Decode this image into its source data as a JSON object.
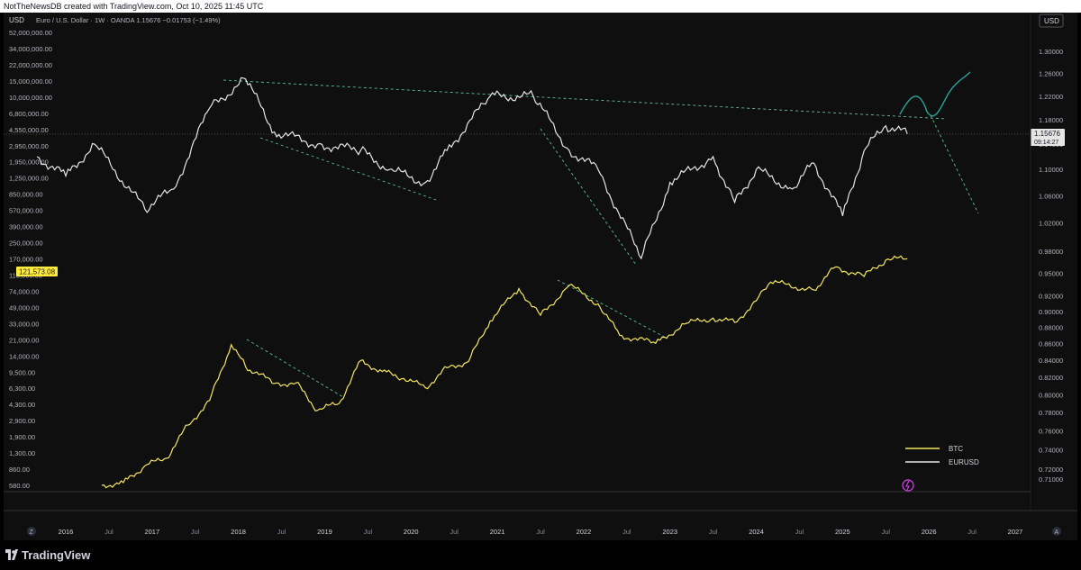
{
  "attribution": "NotTheNewsDB created with TradingView.com, Oct 10, 2025 11:45 UTC",
  "symbol_info": "Euro / U.S. Dollar · 1W · OANDA  1.15676  −0.01753 (−1.49%)",
  "currency_left": "USD",
  "currency_right": "USD",
  "brand_name": "TradingView",
  "left_axis_labels": [
    "52,000,000.00",
    "34,000,000.00",
    "22,000,000.00",
    "15,000,000.00",
    "10,000,000.00",
    "6,800,000.00",
    "4,550,000.00",
    "2,950,000.00",
    "1,950,000.00",
    "1,250,000.00",
    "850,000.00",
    "570,000.00",
    "390,000.00",
    "250,000.00",
    "170,000.00",
    "110,000.00",
    "74,000.00",
    "49,000.00",
    "33,000.00",
    "21,000.00",
    "14,000.00",
    "9,500.00",
    "6,300.00",
    "4,300.00",
    "2,900.00",
    "1,900.00",
    "1,300.00",
    "860.00",
    "580.00"
  ],
  "right_axis_labels": [
    "1.30000",
    "1.26000",
    "1.22000",
    "1.18000",
    "1.14000",
    "1.10000",
    "1.06000",
    "1.02000",
    "0.98000",
    "0.95000",
    "0.92000",
    "0.90000",
    "0.88000",
    "0.86000",
    "0.84000",
    "0.82000",
    "0.80000",
    "0.78000",
    "0.76000",
    "0.74000",
    "0.72000",
    "0.71000"
  ],
  "x_axis_labels": [
    "2016",
    "Jul",
    "2017",
    "Jul",
    "2018",
    "Jul",
    "2019",
    "Jul",
    "2020",
    "Jul",
    "2021",
    "Jul",
    "2022",
    "Jul",
    "2023",
    "Jul",
    "2024",
    "Jul",
    "2025",
    "Jul",
    "2026",
    "Jul",
    "2027"
  ],
  "btc_price_badge": "121,573.08",
  "eurusd_price_badge": "1.15676",
  "countdown": "09:14:27",
  "axis_left_button": "Z",
  "axis_right_button": "A",
  "colors": {
    "btc": "#f5e663",
    "eurusd": "#e6e6e6",
    "projection": "#26a69a",
    "trend": "#5fbf9a",
    "btc_badge": "#ffeb3b"
  },
  "chart_data": {
    "type": "line",
    "x_range": [
      "2015-09",
      "2027-03"
    ],
    "series": [
      {
        "name": "BTC",
        "axis": "left-log",
        "points": [
          [
            "2016-06",
            580
          ],
          [
            "2016-09",
            620
          ],
          [
            "2016-12",
            920
          ],
          [
            "2017-03",
            1100
          ],
          [
            "2017-06",
            2400
          ],
          [
            "2017-09",
            4300
          ],
          [
            "2017-12",
            16000
          ],
          [
            "2018-02",
            9500
          ],
          [
            "2018-06",
            6400
          ],
          [
            "2018-09",
            6500
          ],
          [
            "2018-12",
            3400
          ],
          [
            "2019-03",
            4000
          ],
          [
            "2019-06",
            11000
          ],
          [
            "2019-09",
            8500
          ],
          [
            "2019-12",
            7200
          ],
          [
            "2020-03",
            5800
          ],
          [
            "2020-06",
            9300
          ],
          [
            "2020-09",
            10800
          ],
          [
            "2020-12",
            28000
          ],
          [
            "2021-04",
            60000
          ],
          [
            "2021-07",
            32000
          ],
          [
            "2021-11",
            65000
          ],
          [
            "2022-03",
            42000
          ],
          [
            "2022-06",
            20000
          ],
          [
            "2022-11",
            16500
          ],
          [
            "2023-03",
            26000
          ],
          [
            "2023-07",
            30000
          ],
          [
            "2023-10",
            27000
          ],
          [
            "2024-01",
            45000
          ],
          [
            "2024-03",
            70000
          ],
          [
            "2024-09",
            58000
          ],
          [
            "2024-12",
            100000
          ],
          [
            "2025-04",
            80000
          ],
          [
            "2025-07",
            118000
          ],
          [
            "2025-10",
            121573
          ]
        ]
      },
      {
        "name": "EURUSD",
        "axis": "right",
        "points": [
          [
            "2015-09",
            1.12
          ],
          [
            "2016-01",
            1.09
          ],
          [
            "2016-05",
            1.14
          ],
          [
            "2016-12",
            1.04
          ],
          [
            "2017-04",
            1.07
          ],
          [
            "2017-09",
            1.2
          ],
          [
            "2018-02",
            1.25
          ],
          [
            "2018-06",
            1.16
          ],
          [
            "2018-12",
            1.14
          ],
          [
            "2019-06",
            1.13
          ],
          [
            "2019-10",
            1.1
          ],
          [
            "2020-03",
            1.08
          ],
          [
            "2020-06",
            1.13
          ],
          [
            "2020-12",
            1.22
          ],
          [
            "2021-06",
            1.22
          ],
          [
            "2021-11",
            1.13
          ],
          [
            "2022-03",
            1.1
          ],
          [
            "2022-09",
            0.97
          ],
          [
            "2023-01",
            1.08
          ],
          [
            "2023-07",
            1.12
          ],
          [
            "2023-10",
            1.05
          ],
          [
            "2024-01",
            1.1
          ],
          [
            "2024-06",
            1.07
          ],
          [
            "2024-09",
            1.11
          ],
          [
            "2025-01",
            1.03
          ],
          [
            "2025-04",
            1.13
          ],
          [
            "2025-07",
            1.17
          ],
          [
            "2025-10",
            1.15676
          ]
        ]
      }
    ],
    "annotations": [
      "dashed-trendlines",
      "projection-path"
    ],
    "legend": [
      "BTC",
      "EURUSD"
    ],
    "legend_position": "bottom-right",
    "grid": false
  }
}
